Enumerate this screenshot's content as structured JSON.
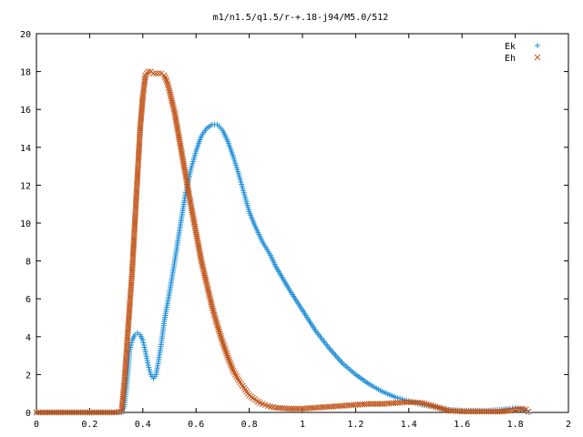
{
  "chart_data": {
    "type": "scatter",
    "title": "m1/n1.5/q1.5/r-+.18-j94/M5.0/512",
    "xlabel": "",
    "ylabel": "",
    "xlim": [
      0,
      2
    ],
    "ylim": [
      0,
      20
    ],
    "xticks": [
      "0",
      "0.2",
      "0.4",
      "0.6",
      "0.8",
      "1",
      "1.2",
      "1.4",
      "1.6",
      "1.8",
      "2"
    ],
    "yticks": [
      "0",
      "2",
      "4",
      "6",
      "8",
      "10",
      "12",
      "14",
      "16",
      "18",
      "20"
    ],
    "legend_position": "top-right",
    "grid": false,
    "series": [
      {
        "name": "Ek",
        "marker": "plus",
        "color": "#1f8fd6",
        "x": [
          0.0,
          0.05,
          0.1,
          0.15,
          0.2,
          0.25,
          0.3,
          0.32,
          0.33,
          0.34,
          0.35,
          0.36,
          0.37,
          0.38,
          0.39,
          0.4,
          0.41,
          0.42,
          0.43,
          0.44,
          0.45,
          0.46,
          0.47,
          0.48,
          0.5,
          0.52,
          0.54,
          0.56,
          0.58,
          0.6,
          0.62,
          0.64,
          0.66,
          0.68,
          0.7,
          0.72,
          0.74,
          0.76,
          0.78,
          0.8,
          0.82,
          0.85,
          0.88,
          0.9,
          0.95,
          1.0,
          1.05,
          1.1,
          1.15,
          1.2,
          1.25,
          1.3,
          1.35,
          1.4,
          1.45,
          1.5,
          1.55,
          1.6,
          1.65,
          1.7,
          1.75,
          1.78,
          1.8,
          1.82,
          1.84,
          1.85
        ],
        "y": [
          0.0,
          0.0,
          0.0,
          0.0,
          0.0,
          0.0,
          0.0,
          0.0,
          0.3,
          1.5,
          3.2,
          3.8,
          4.1,
          4.2,
          4.1,
          3.8,
          3.2,
          2.5,
          2.0,
          1.8,
          2.0,
          2.8,
          3.7,
          4.8,
          6.3,
          8.0,
          9.8,
          11.5,
          12.8,
          13.8,
          14.6,
          15.0,
          15.2,
          15.2,
          14.9,
          14.3,
          13.5,
          12.6,
          11.6,
          10.6,
          9.9,
          9.0,
          8.3,
          7.7,
          6.5,
          5.4,
          4.3,
          3.4,
          2.6,
          2.0,
          1.5,
          1.1,
          0.8,
          0.6,
          0.4,
          0.3,
          0.15,
          0.1,
          0.1,
          0.1,
          0.15,
          0.2,
          0.25,
          0.2,
          0.1,
          0.0
        ]
      },
      {
        "name": "Eh",
        "marker": "cross",
        "color": "#c05316",
        "x": [
          0.0,
          0.05,
          0.1,
          0.15,
          0.2,
          0.25,
          0.3,
          0.32,
          0.33,
          0.34,
          0.35,
          0.36,
          0.37,
          0.38,
          0.39,
          0.4,
          0.41,
          0.42,
          0.43,
          0.44,
          0.45,
          0.46,
          0.47,
          0.48,
          0.49,
          0.5,
          0.52,
          0.54,
          0.56,
          0.58,
          0.6,
          0.62,
          0.64,
          0.66,
          0.68,
          0.7,
          0.72,
          0.74,
          0.76,
          0.78,
          0.8,
          0.82,
          0.84,
          0.86,
          0.88,
          0.9,
          0.95,
          1.0,
          1.05,
          1.1,
          1.15,
          1.2,
          1.25,
          1.3,
          1.35,
          1.4,
          1.45,
          1.5,
          1.55,
          1.6,
          1.65,
          1.7,
          1.75,
          1.78,
          1.8,
          1.82,
          1.84,
          1.85
        ],
        "y": [
          0.0,
          0.0,
          0.0,
          0.0,
          0.0,
          0.0,
          0.0,
          0.05,
          1.5,
          3.5,
          5.5,
          7.5,
          10.0,
          12.5,
          15.0,
          16.7,
          17.8,
          18.0,
          18.0,
          17.9,
          17.9,
          17.9,
          17.9,
          17.8,
          17.5,
          17.0,
          15.8,
          14.2,
          12.6,
          11.0,
          9.5,
          8.0,
          6.8,
          5.6,
          4.6,
          3.7,
          2.9,
          2.2,
          1.7,
          1.3,
          0.9,
          0.7,
          0.5,
          0.4,
          0.3,
          0.25,
          0.2,
          0.2,
          0.25,
          0.3,
          0.35,
          0.4,
          0.45,
          0.45,
          0.5,
          0.55,
          0.5,
          0.3,
          0.1,
          0.05,
          0.05,
          0.05,
          0.05,
          0.1,
          0.15,
          0.2,
          0.15,
          0.05
        ]
      }
    ]
  }
}
